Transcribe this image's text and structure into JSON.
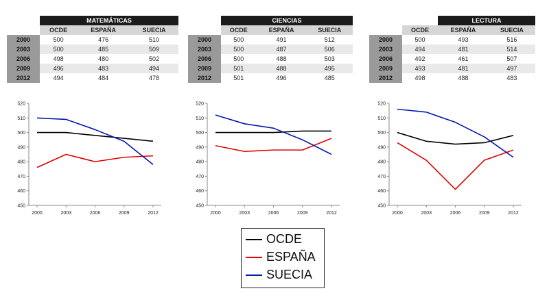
{
  "legend": {
    "items": [
      {
        "name": "OCDE",
        "color": "#000000"
      },
      {
        "name": "ESPAÑA",
        "color": "#e00000"
      },
      {
        "name": "SUECIA",
        "color": "#0018b0"
      }
    ]
  },
  "tables": [
    {
      "subject": "MATEMÁTICAS",
      "columns": [
        "OCDE",
        "ESPAÑA",
        "SUECIA"
      ],
      "rows": [
        {
          "year": "2000",
          "values": [
            "500",
            "476",
            "510"
          ]
        },
        {
          "year": "2003",
          "values": [
            "500",
            "485",
            "509"
          ]
        },
        {
          "year": "2006",
          "values": [
            "498",
            "480",
            "502"
          ]
        },
        {
          "year": "2009",
          "values": [
            "496",
            "483",
            "494"
          ]
        },
        {
          "year": "2012",
          "values": [
            "494",
            "484",
            "478"
          ]
        }
      ]
    },
    {
      "subject": "CIENCIAS",
      "columns": [
        "OCDE",
        "ESPAÑA",
        "SUECIA"
      ],
      "rows": [
        {
          "year": "2000",
          "values": [
            "500",
            "491",
            "512"
          ]
        },
        {
          "year": "2003",
          "values": [
            "500",
            "487",
            "506"
          ]
        },
        {
          "year": "2006",
          "values": [
            "500",
            "488",
            "503"
          ]
        },
        {
          "year": "2009",
          "values": [
            "501",
            "488",
            "495"
          ]
        },
        {
          "year": "2012",
          "values": [
            "501",
            "496",
            "485"
          ]
        }
      ]
    },
    {
      "subject": "LECTURA",
      "columns": [
        "OCDE",
        "ESPAÑA",
        "SUECIA"
      ],
      "rows": [
        {
          "year": "2000",
          "values": [
            "500",
            "493",
            "516"
          ]
        },
        {
          "year": "2003",
          "values": [
            "494",
            "481",
            "514"
          ]
        },
        {
          "year": "2006",
          "values": [
            "492",
            "461",
            "507"
          ]
        },
        {
          "year": "2009",
          "values": [
            "493",
            "481",
            "497"
          ]
        },
        {
          "year": "2012",
          "values": [
            "498",
            "488",
            "483"
          ]
        }
      ]
    }
  ],
  "chart_data": [
    {
      "type": "line",
      "categories": [
        "2000",
        "2003",
        "2006",
        "2009",
        "2012"
      ],
      "ylim": [
        450,
        520
      ],
      "yticks": [
        "450",
        "460",
        "470",
        "480",
        "490",
        "500",
        "510",
        "520"
      ],
      "series": [
        {
          "name": "OCDE",
          "color": "#000000",
          "values": [
            500,
            500,
            498,
            496,
            494
          ]
        },
        {
          "name": "ESPAÑA",
          "color": "#e00000",
          "values": [
            476,
            485,
            480,
            483,
            484
          ]
        },
        {
          "name": "SUECIA",
          "color": "#0018b0",
          "values": [
            510,
            509,
            502,
            494,
            478
          ]
        }
      ]
    },
    {
      "type": "line",
      "categories": [
        "2000",
        "2003",
        "2006",
        "2009",
        "2012"
      ],
      "ylim": [
        450,
        520
      ],
      "yticks": [
        "450",
        "460",
        "470",
        "480",
        "490",
        "500",
        "510",
        "520"
      ],
      "series": [
        {
          "name": "OCDE",
          "color": "#000000",
          "values": [
            500,
            500,
            500,
            501,
            501
          ]
        },
        {
          "name": "ESPAÑA",
          "color": "#e00000",
          "values": [
            491,
            487,
            488,
            488,
            496
          ]
        },
        {
          "name": "SUECIA",
          "color": "#0018b0",
          "values": [
            512,
            506,
            503,
            495,
            485
          ]
        }
      ]
    },
    {
      "type": "line",
      "categories": [
        "2000",
        "2003",
        "2006",
        "2009",
        "2012"
      ],
      "ylim": [
        450,
        520
      ],
      "yticks": [
        "450",
        "460",
        "470",
        "480",
        "490",
        "500",
        "510",
        "520"
      ],
      "series": [
        {
          "name": "OCDE",
          "color": "#000000",
          "values": [
            500,
            494,
            492,
            493,
            498
          ]
        },
        {
          "name": "ESPAÑA",
          "color": "#e00000",
          "values": [
            493,
            481,
            461,
            481,
            488
          ]
        },
        {
          "name": "SUECIA",
          "color": "#0018b0",
          "values": [
            516,
            514,
            507,
            497,
            483
          ]
        }
      ]
    }
  ]
}
